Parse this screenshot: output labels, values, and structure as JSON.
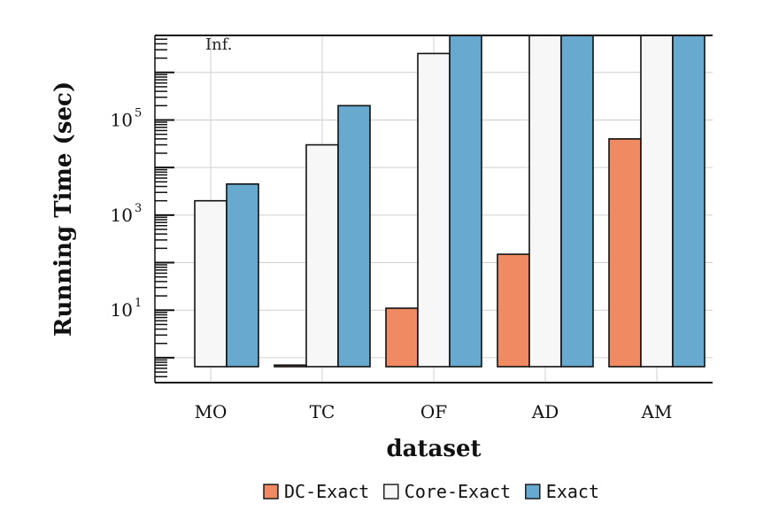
{
  "chart_data": {
    "type": "bar",
    "title": "",
    "xlabel": "dataset",
    "ylabel": "Running Time (sec)",
    "yscale": "log",
    "ylim": [
      0.3,
      6000000
    ],
    "grid": true,
    "legend_position": "bottom",
    "annotation": "Inf.",
    "categories": [
      "MO",
      "TC",
      "OF",
      "AD",
      "AM"
    ],
    "y_ticks": [
      {
        "base": "10",
        "exp": "1",
        "value": 10
      },
      {
        "base": "10",
        "exp": "3",
        "value": 1000
      },
      {
        "base": "10",
        "exp": "5",
        "value": 100000
      }
    ],
    "series": [
      {
        "name": "DC-Exact",
        "color": "#ef8a62",
        "values": [
          0.55,
          0.7,
          11,
          150,
          40000
        ]
      },
      {
        "name": "Core-Exact",
        "color": "#f7f7f7",
        "values": [
          2000,
          30000,
          2500000,
          "Inf.",
          "Inf."
        ]
      },
      {
        "name": "Exact",
        "color": "#67a9cf",
        "values": [
          4500,
          200000,
          "Inf.",
          "Inf.",
          "Inf."
        ]
      }
    ]
  }
}
